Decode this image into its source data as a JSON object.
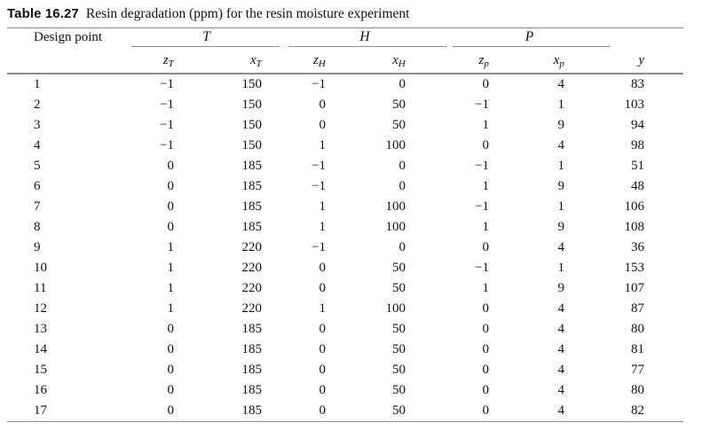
{
  "title": {
    "label": "Table 16.27",
    "caption": "Resin degradation (ppm) for the resin moisture experiment"
  },
  "table": {
    "design_point_label": "Design point",
    "groups": [
      {
        "label": "T"
      },
      {
        "label": "H"
      },
      {
        "label": "P"
      }
    ],
    "sub_headers": [
      {
        "base": "z",
        "sub": "T"
      },
      {
        "base": "x",
        "sub": "T"
      },
      {
        "base": "z",
        "sub": "H"
      },
      {
        "base": "x",
        "sub": "H"
      },
      {
        "base": "z",
        "sub": "p"
      },
      {
        "base": "x",
        "sub": "p"
      },
      {
        "base": "y",
        "sub": ""
      }
    ],
    "col_keys": [
      "design-point",
      "zT",
      "xT",
      "zH",
      "xH",
      "zp",
      "xp",
      "y"
    ],
    "rows": [
      [
        "1",
        "−1",
        "150",
        "−1",
        "0",
        "0",
        "4",
        "83"
      ],
      [
        "2",
        "−1",
        "150",
        "0",
        "50",
        "−1",
        "1",
        "103"
      ],
      [
        "3",
        "−1",
        "150",
        "0",
        "50",
        "1",
        "9",
        "94"
      ],
      [
        "4",
        "−1",
        "150",
        "1",
        "100",
        "0",
        "4",
        "98"
      ],
      [
        "5",
        "0",
        "185",
        "−1",
        "0",
        "−1",
        "1",
        "51"
      ],
      [
        "6",
        "0",
        "185",
        "−1",
        "0",
        "1",
        "9",
        "48"
      ],
      [
        "7",
        "0",
        "185",
        "1",
        "100",
        "−1",
        "1",
        "106"
      ],
      [
        "8",
        "0",
        "185",
        "1",
        "100",
        "1",
        "9",
        "108"
      ],
      [
        "9",
        "1",
        "220",
        "−1",
        "0",
        "0",
        "4",
        "36"
      ],
      [
        "10",
        "1",
        "220",
        "0",
        "50",
        "−1",
        "1",
        "153"
      ],
      [
        "11",
        "1",
        "220",
        "0",
        "50",
        "1",
        "9",
        "107"
      ],
      [
        "12",
        "1",
        "220",
        "1",
        "100",
        "0",
        "4",
        "87"
      ],
      [
        "13",
        "0",
        "185",
        "0",
        "50",
        "0",
        "4",
        "80"
      ],
      [
        "14",
        "0",
        "185",
        "0",
        "50",
        "0",
        "4",
        "81"
      ],
      [
        "15",
        "0",
        "185",
        "0",
        "50",
        "0",
        "4",
        "77"
      ],
      [
        "16",
        "0",
        "185",
        "0",
        "50",
        "0",
        "4",
        "80"
      ],
      [
        "17",
        "0",
        "185",
        "0",
        "50",
        "0",
        "4",
        "82"
      ]
    ],
    "rule_color": "#8c8c8c",
    "text_color": "#111111"
  }
}
